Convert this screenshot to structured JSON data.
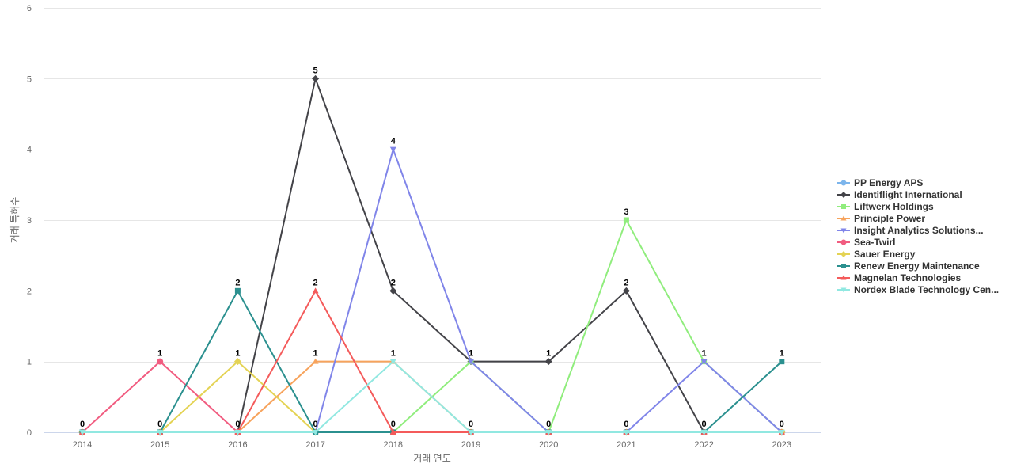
{
  "chart_data": {
    "type": "line",
    "title": "",
    "xlabel": "거래 연도",
    "ylabel": "거래 특허수",
    "x": [
      "2014",
      "2015",
      "2016",
      "2017",
      "2018",
      "2019",
      "2020",
      "2021",
      "2022",
      "2023"
    ],
    "ylim": [
      0,
      6
    ],
    "yticks": [
      0,
      1,
      2,
      3,
      4,
      5,
      6
    ],
    "grid": true,
    "legend_position": "right",
    "series": [
      {
        "name": "PP Energy APS",
        "color": "#7cb5ec",
        "marker": "circle",
        "values": [
          0,
          0,
          0,
          0,
          0,
          0,
          0,
          0,
          0,
          0
        ]
      },
      {
        "name": "Identiflight International",
        "color": "#434348",
        "marker": "diamond",
        "values": [
          0,
          0,
          0,
          5,
          2,
          1,
          1,
          2,
          0,
          0
        ]
      },
      {
        "name": "Liftwerx Holdings",
        "color": "#90ed7d",
        "marker": "square",
        "values": [
          0,
          0,
          0,
          0,
          0,
          1,
          0,
          3,
          1,
          0
        ]
      },
      {
        "name": "Principle Power",
        "color": "#f7a35c",
        "marker": "triangle",
        "values": [
          0,
          0,
          0,
          1,
          1,
          0,
          0,
          0,
          0,
          0
        ]
      },
      {
        "name": "Insight Analytics Solutions...",
        "color": "#8085e9",
        "marker": "triangle-down",
        "values": [
          0,
          0,
          0,
          0,
          4,
          1,
          0,
          0,
          1,
          0
        ]
      },
      {
        "name": "Sea-Twirl",
        "color": "#f15c80",
        "marker": "circle",
        "values": [
          0,
          1,
          0,
          0,
          0,
          0,
          0,
          0,
          0,
          0
        ]
      },
      {
        "name": "Sauer Energy",
        "color": "#e4d354",
        "marker": "diamond",
        "values": [
          0,
          0,
          1,
          0,
          0,
          0,
          0,
          0,
          0,
          0
        ]
      },
      {
        "name": "Renew Energy Maintenance",
        "color": "#2b908f",
        "marker": "square",
        "values": [
          0,
          0,
          2,
          0,
          0,
          0,
          0,
          0,
          0,
          1
        ]
      },
      {
        "name": "Magnelan Technologies",
        "color": "#f45b5b",
        "marker": "triangle",
        "values": [
          0,
          0,
          0,
          2,
          0,
          0,
          0,
          0,
          0,
          0
        ]
      },
      {
        "name": "Nordex Blade Technology Cen...",
        "color": "#91e8e1",
        "marker": "triangle-down",
        "values": [
          0,
          0,
          0,
          0,
          1,
          0,
          0,
          0,
          0,
          0
        ]
      }
    ],
    "data_labels": [
      {
        "x": "2014",
        "text": "0"
      },
      {
        "x": "2015",
        "text": "1",
        "at": 1
      },
      {
        "x": "2015",
        "text": "0",
        "at": 0
      },
      {
        "x": "2016",
        "text": "2",
        "at": 2
      },
      {
        "x": "2016",
        "text": "1",
        "at": 1
      },
      {
        "x": "2016",
        "text": "0",
        "at": 0
      },
      {
        "x": "2017",
        "text": "5",
        "at": 5
      },
      {
        "x": "2017",
        "text": "2",
        "at": 2
      },
      {
        "x": "2017",
        "text": "1",
        "at": 1
      },
      {
        "x": "2017",
        "text": "0",
        "at": 0
      },
      {
        "x": "2018",
        "text": "4",
        "at": 4
      },
      {
        "x": "2018",
        "text": "2",
        "at": 2
      },
      {
        "x": "2018",
        "text": "1",
        "at": 1
      },
      {
        "x": "2018",
        "text": "0",
        "at": 0
      },
      {
        "x": "2019",
        "text": "1",
        "at": 1
      },
      {
        "x": "2019",
        "text": "0",
        "at": 0
      },
      {
        "x": "2020",
        "text": "1",
        "at": 1
      },
      {
        "x": "2020",
        "text": "0",
        "at": 0
      },
      {
        "x": "2021",
        "text": "3",
        "at": 3
      },
      {
        "x": "2021",
        "text": "2",
        "at": 2
      },
      {
        "x": "2021",
        "text": "0",
        "at": 0
      },
      {
        "x": "2022",
        "text": "1",
        "at": 1
      },
      {
        "x": "2022",
        "text": "0",
        "at": 0
      },
      {
        "x": "2023",
        "text": "1",
        "at": 1
      },
      {
        "x": "2023",
        "text": "0",
        "at": 0
      }
    ]
  }
}
